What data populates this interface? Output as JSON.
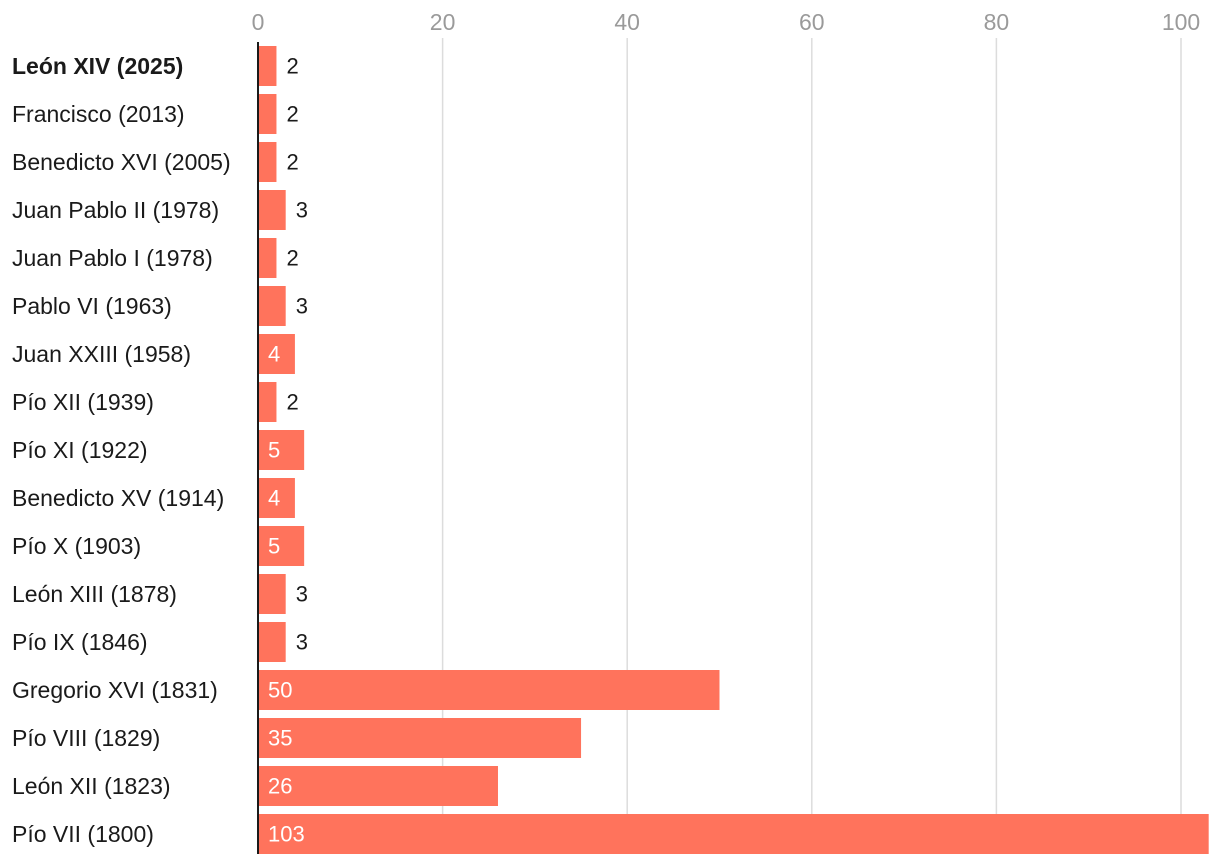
{
  "chart_data": {
    "type": "bar",
    "orientation": "horizontal",
    "title": "",
    "xlabel": "",
    "ylabel": "",
    "xlim": [
      0,
      103
    ],
    "x_ticks": [
      0,
      20,
      40,
      60,
      80,
      100
    ],
    "grid": true,
    "categories": [
      "León XIV (2025)",
      "Francisco (2013)",
      "Benedicto XVI (2005)",
      "Juan Pablo II (1978)",
      "Juan Pablo I (1978)",
      "Pablo VI (1963)",
      "Juan XXIII (1958)",
      "Pío XII (1939)",
      "Pío XI (1922)",
      "Benedicto XV (1914)",
      "Pío X (1903)",
      "León XIII (1878)",
      "Pío IX (1846)",
      "Gregorio XVI (1831)",
      "Pío VIII (1829)",
      "León XII (1823)",
      "Pío VII (1800)"
    ],
    "values": [
      2,
      2,
      2,
      3,
      2,
      3,
      4,
      2,
      5,
      4,
      5,
      3,
      3,
      50,
      35,
      26,
      103
    ],
    "highlight_category": "León XIV (2025)",
    "bar_color": "#ff735c",
    "gridline_color": "#dcdcdc",
    "axis_line_color": "#1a1a1a",
    "inside_label_color": "#ffffff",
    "outside_label_color": "#1a1a1a",
    "tick_label_color": "#9a9a9a"
  }
}
